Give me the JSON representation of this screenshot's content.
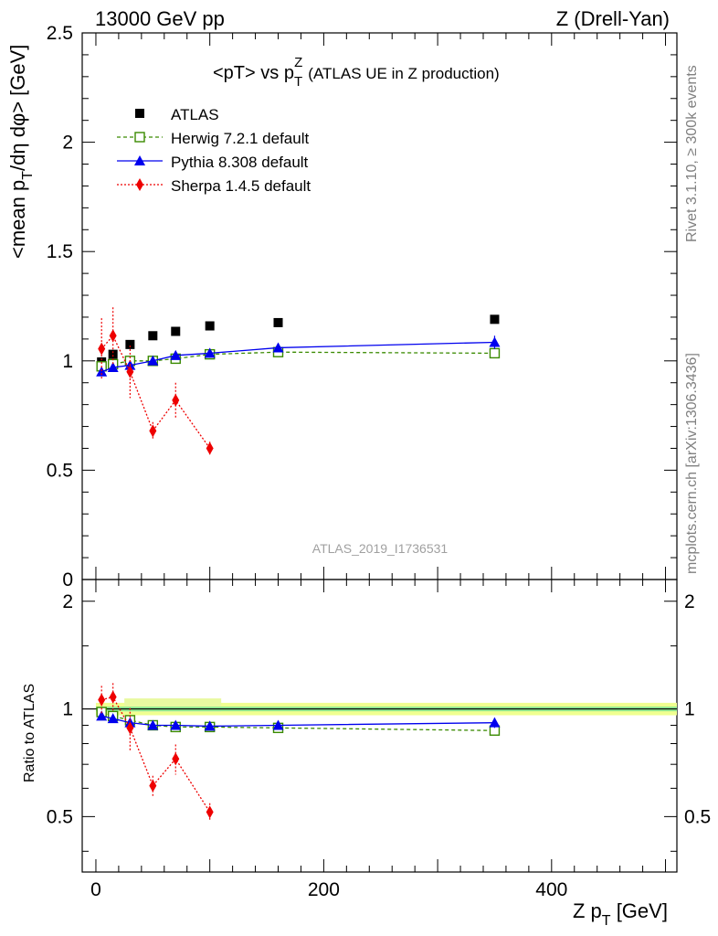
{
  "header": {
    "energy": "13000 GeV pp",
    "process": "Z (Drell-Yan)",
    "side_rivet": "Rivet 3.1.10, ≥ 300k events",
    "side_mcplots": "mcplots.cern.ch [arXiv:1306.3436]",
    "analysis_id": "ATLAS_2019_I1736531"
  },
  "chart_data": {
    "type": "line",
    "title": "<pT> vs p_T^Z (ATLAS UE in Z production)",
    "title_main": "<pT> vs p",
    "title_sub": "T",
    "title_sup": "Z",
    "title_rest": "(ATLAS UE in Z production)",
    "ylabel": "<mean p_T/dη dφ> [GeV]",
    "ylabel_a": "<mean p",
    "ylabel_sub": "T",
    "ylabel_b": "/dη dφ> [GeV]",
    "xlabel": "Z p_T [GeV]",
    "xlabel_a": "Z p",
    "xlabel_sub": "T",
    "xlabel_b": " [GeV]",
    "ratio_ylabel": "Ratio to ATLAS",
    "xlim": [
      -12,
      510
    ],
    "ylim": [
      0,
      2.5
    ],
    "ratio_ylim": [
      0.35,
      2.3
    ],
    "x_ticks": [
      "0",
      "200",
      "400"
    ],
    "x_tick_values": [
      0,
      200,
      400
    ],
    "y_ticks": [
      "0",
      "0.5",
      "1",
      "1.5",
      "2",
      "2.5"
    ],
    "y_tick_values": [
      0,
      0.5,
      1,
      1.5,
      2,
      2.5
    ],
    "ratio_y_ticks": [
      "0.5",
      "1",
      "2"
    ],
    "ratio_y_tick_values": [
      0.5,
      1,
      2
    ],
    "x": [
      5,
      15,
      30,
      50,
      70,
      100,
      160,
      350
    ],
    "legend_location": "top-left",
    "series": [
      {
        "name": "ATLAS",
        "legend": "ATLAS",
        "color": "#000000",
        "marker": "square",
        "x": [
          5,
          15,
          30,
          50,
          70,
          100,
          160,
          350
        ],
        "values": [
          0.995,
          1.03,
          1.075,
          1.115,
          1.135,
          1.16,
          1.175,
          1.19
        ],
        "errors": [
          0.01,
          0.01,
          0.01,
          0.01,
          0.01,
          0.01,
          0.01,
          0.01
        ]
      },
      {
        "name": "Herwig",
        "legend": "Herwig 7.2.1 default",
        "color": "#3a8a00",
        "marker": "open-square",
        "line": "dashed",
        "x": [
          5,
          15,
          30,
          50,
          70,
          100,
          160,
          350
        ],
        "values": [
          0.975,
          0.985,
          1.0,
          1.0,
          1.01,
          1.03,
          1.04,
          1.035
        ],
        "errors": [
          0.01,
          0.01,
          0.01,
          0.01,
          0.01,
          0.01,
          0.01,
          0.01
        ],
        "ratio": [
          0.98,
          0.955,
          0.93,
          0.9,
          0.89,
          0.89,
          0.885,
          0.87
        ]
      },
      {
        "name": "Pythia",
        "legend": "Pythia 8.308 default",
        "color": "#0000ee",
        "marker": "triangle",
        "line": "solid",
        "x": [
          5,
          15,
          30,
          50,
          70,
          100,
          160,
          350
        ],
        "values": [
          0.95,
          0.97,
          0.98,
          1.0,
          1.025,
          1.035,
          1.06,
          1.085
        ],
        "errors": [
          0.015,
          0.015,
          0.015,
          0.015,
          0.015,
          0.02,
          0.02,
          0.03
        ],
        "ratio": [
          0.955,
          0.94,
          0.915,
          0.9,
          0.9,
          0.895,
          0.9,
          0.915
        ]
      },
      {
        "name": "Sherpa",
        "legend": "Sherpa 1.4.5 default",
        "color": "#ee0000",
        "marker": "diamond",
        "line": "dotted",
        "x": [
          5,
          15,
          30,
          50,
          70,
          100
        ],
        "values": [
          1.055,
          1.115,
          0.95,
          0.68,
          0.82,
          0.6
        ],
        "errors": [
          0.14,
          0.13,
          0.12,
          0.04,
          0.08,
          0.03
        ],
        "ratio": [
          1.06,
          1.08,
          0.885,
          0.61,
          0.725,
          0.515
        ],
        "ratio_errors": [
          0.1,
          0.1,
          0.12,
          0.04,
          0.07,
          0.03
        ]
      }
    ]
  }
}
